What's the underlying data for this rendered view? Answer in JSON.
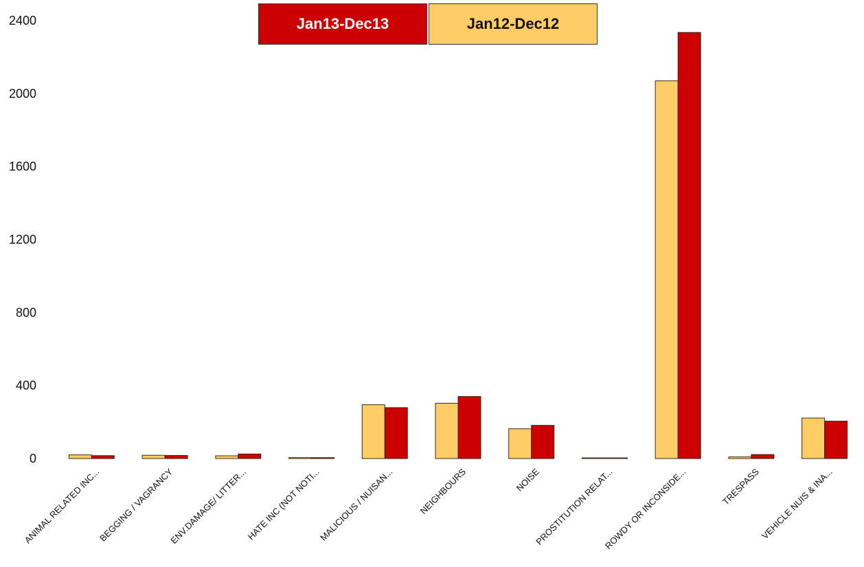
{
  "chart_data": {
    "type": "bar",
    "categories": [
      "ANIMAL RELATED INC...",
      "BEGGING / VAGRANCY",
      "ENV.DAMAGE/ LITTER...",
      "HATE INC (NOT NOTI...",
      "MALICIOUS / NUISAN...",
      "NEIGHBOURS",
      "NOISE",
      "PROSTITUTION RELAT...",
      "ROWDY OR INCONSIDE...",
      "TRESPASS",
      "VEHICLE NUIS & INA..."
    ],
    "series": [
      {
        "name": "Jan12-Dec12",
        "color": "#FFCC66",
        "values": [
          20,
          18,
          15,
          5,
          295,
          303,
          163,
          3,
          2070,
          9,
          222
        ]
      },
      {
        "name": "Jan13-Dec13",
        "color": "#CC0000",
        "values": [
          16,
          17,
          25,
          5,
          279,
          340,
          182,
          3,
          2335,
          22,
          205
        ]
      }
    ],
    "ylim": [
      0,
      2400
    ],
    "yticks": [
      0,
      400,
      800,
      1200,
      1600,
      2000,
      2400
    ],
    "grid": false,
    "legend_placement": "top-center",
    "title": "",
    "xlabel": "",
    "ylabel": ""
  },
  "legend": {
    "items": [
      {
        "label": "Jan13-Dec13",
        "color": "#CC0000"
      },
      {
        "label": "Jan12-Dec12",
        "color": "#FFCC66"
      }
    ]
  }
}
